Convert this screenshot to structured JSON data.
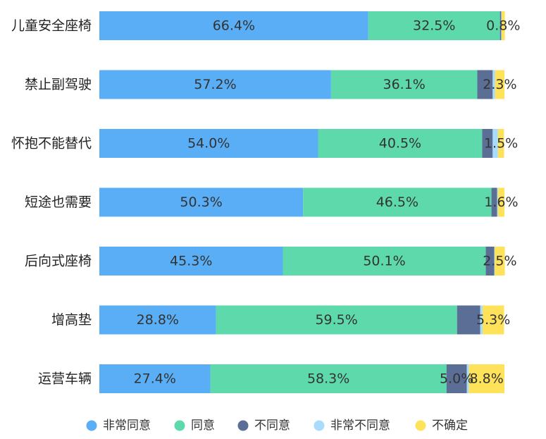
{
  "chart_data": {
    "type": "bar",
    "orientation": "horizontal",
    "stacked": true,
    "categories": [
      "儿童安全座椅",
      "禁止副驾驶",
      "怀抱不能替代",
      "短途也需要",
      "后向式座椅",
      "增高垫",
      "运营车辆"
    ],
    "series": [
      {
        "name": "非常同意",
        "color": "#5aaef5",
        "values": [
          66.4,
          57.2,
          54.0,
          50.3,
          45.3,
          28.8,
          27.4
        ],
        "labels": [
          "66.4%",
          "57.2%",
          "54.0%",
          "50.3%",
          "45.3%",
          "28.8%",
          "27.4%"
        ]
      },
      {
        "name": "同意",
        "color": "#5dd9ac",
        "values": [
          32.5,
          36.1,
          40.5,
          46.5,
          50.1,
          59.5,
          58.3
        ],
        "labels": [
          "32.5%",
          "36.1%",
          "40.5%",
          "46.5%",
          "50.1%",
          "59.5%",
          "58.3%"
        ]
      },
      {
        "name": "不同意",
        "color": "#5a6e96",
        "values": [
          0.3,
          3.8,
          2.6,
          1.4,
          2.1,
          5.7,
          5.0
        ],
        "labels": [
          "",
          "",
          "",
          "",
          "",
          "",
          "5.0%"
        ]
      },
      {
        "name": "非常不同意",
        "color": "#a8dcfa",
        "values": [
          0.1,
          0.6,
          1.3,
          0.2,
          0.1,
          0.6,
          0.5
        ],
        "labels": [
          "",
          "",
          "",
          "",
          "",
          "",
          ""
        ]
      },
      {
        "name": "不确定",
        "color": "#fde25a",
        "values": [
          0.8,
          2.3,
          1.5,
          1.6,
          2.5,
          5.3,
          8.8
        ],
        "labels": [
          "0.8%",
          "2.3%",
          "1.5%",
          "1.6%",
          "2.5%",
          "5.3%",
          "8.8%"
        ]
      }
    ],
    "xlim": [
      0,
      100
    ],
    "grid": false,
    "legend_position": "bottom"
  }
}
